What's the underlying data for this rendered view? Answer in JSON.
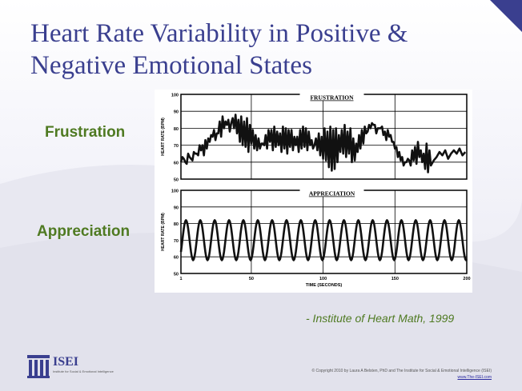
{
  "slide": {
    "title_line1": "Heart Rate Variability in Positive &",
    "title_line2": "Negative Emotional States",
    "label_frustration": "Frustration",
    "label_appreciation": "Appreciation",
    "citation": "- Institute of Heart Math, 1999",
    "logo_text": "ISEI",
    "logo_subtext": "Institute for Social & Emotional Intelligence",
    "copyright": "© Copyright 2010 by Laura A Belsten, PhD and The Institute for Social & Emotional Intelligence (ISEI)",
    "website": "www.The-ISEI.com"
  },
  "colors": {
    "title": "#3a3f8f",
    "label": "#4f7a22",
    "line": "#111111"
  },
  "chart_data": [
    {
      "type": "line",
      "title": "FRUSTRATION",
      "ylabel": "HEART RATE (BPM)",
      "ylim": [
        50,
        100
      ],
      "yticks": [
        50,
        60,
        70,
        80,
        90,
        100
      ],
      "xlim": [
        1,
        200
      ],
      "grid": true,
      "x": [
        1,
        3,
        5,
        7,
        9,
        11,
        13,
        15,
        17,
        19,
        21,
        23,
        25,
        27,
        29,
        31,
        33,
        35,
        37,
        39,
        41,
        43,
        45,
        47,
        49,
        51,
        53,
        55,
        57,
        59,
        61,
        63,
        65,
        67,
        69,
        71,
        73,
        75,
        77,
        79,
        81,
        83,
        85,
        87,
        89,
        91,
        93,
        95,
        97,
        99,
        101,
        103,
        105,
        107,
        109,
        111,
        113,
        115,
        117,
        119,
        121,
        123,
        125,
        127,
        129,
        131,
        133,
        135,
        137,
        139,
        141,
        143,
        145,
        147,
        149,
        151,
        153,
        155,
        157,
        159,
        161,
        163,
        165,
        167,
        169,
        171,
        173,
        175,
        177,
        179,
        181,
        183,
        185,
        187,
        189,
        191,
        193,
        195,
        197,
        199
      ],
      "y": [
        60,
        62,
        59,
        63,
        61,
        65,
        64,
        67,
        64,
        68,
        72,
        75,
        73,
        77,
        75,
        80,
        82,
        78,
        86,
        88,
        85,
        87,
        84,
        86,
        82,
        79,
        76,
        74,
        71,
        70,
        68,
        72,
        67,
        69,
        70,
        66,
        68,
        65,
        69,
        67,
        70,
        66,
        68,
        69,
        67,
        70,
        68,
        74,
        77,
        75,
        80,
        78,
        81,
        79,
        80,
        76,
        79,
        82,
        78,
        80,
        74,
        71,
        76,
        79,
        81,
        78,
        80,
        82,
        77,
        80,
        81,
        78,
        79,
        76,
        72,
        69,
        66,
        63,
        60,
        62,
        58,
        61,
        59,
        63,
        60,
        56,
        54,
        58,
        61,
        63,
        66,
        64,
        67,
        62,
        65,
        67,
        65,
        68,
        64,
        66
      ],
      "noise_y": [
        63,
        60,
        65,
        62,
        66,
        65,
        70,
        70,
        73,
        74,
        76,
        79,
        77,
        84,
        87,
        84,
        85,
        83,
        80,
        77,
        72,
        70,
        69,
        66,
        71,
        68,
        67,
        68,
        71,
        76,
        79,
        79,
        81,
        78,
        77,
        81,
        80,
        79,
        79,
        75,
        75,
        79,
        81,
        80,
        78,
        73,
        70,
        67,
        64,
        62,
        61,
        57,
        55,
        56,
        60,
        66,
        65,
        63,
        65,
        60,
        61,
        66,
        68,
        71,
        77,
        82,
        83,
        82,
        80,
        80,
        76,
        73,
        75,
        72,
        68,
        63,
        61,
        58,
        60,
        61,
        67,
        69,
        72,
        67,
        65,
        71,
        67
      ],
      "noise_x": [
        2,
        4,
        6,
        8,
        10,
        12,
        14,
        16,
        18,
        20,
        22,
        24,
        26,
        28,
        30,
        32,
        34,
        36,
        38,
        40,
        42,
        44,
        46,
        48,
        50,
        52,
        54,
        56,
        58,
        60,
        62,
        64,
        66,
        68,
        70,
        72,
        74,
        76,
        78,
        80,
        82,
        84,
        86,
        88,
        90,
        92,
        94,
        96,
        98,
        100,
        102,
        104,
        106,
        108,
        110,
        112,
        114,
        116,
        118,
        120,
        122,
        124,
        126,
        128,
        130,
        132,
        134,
        136,
        138,
        140,
        142,
        144,
        146,
        148,
        150,
        152,
        154,
        156,
        158,
        160,
        162,
        164,
        166,
        168,
        170,
        172,
        174
      ]
    },
    {
      "type": "line",
      "title": "APPRECIATION",
      "xlabel": "TIME (SECONDS)",
      "ylabel": "HEART RATE (BPM)",
      "ylim": [
        50,
        100
      ],
      "yticks": [
        50,
        60,
        70,
        80,
        90,
        100
      ],
      "xlim": [
        1,
        200
      ],
      "xticks": [
        1,
        50,
        100,
        150,
        200
      ],
      "grid": true,
      "period_seconds": 10,
      "mean_bpm": 70,
      "amplitude_bpm": 12
    }
  ]
}
